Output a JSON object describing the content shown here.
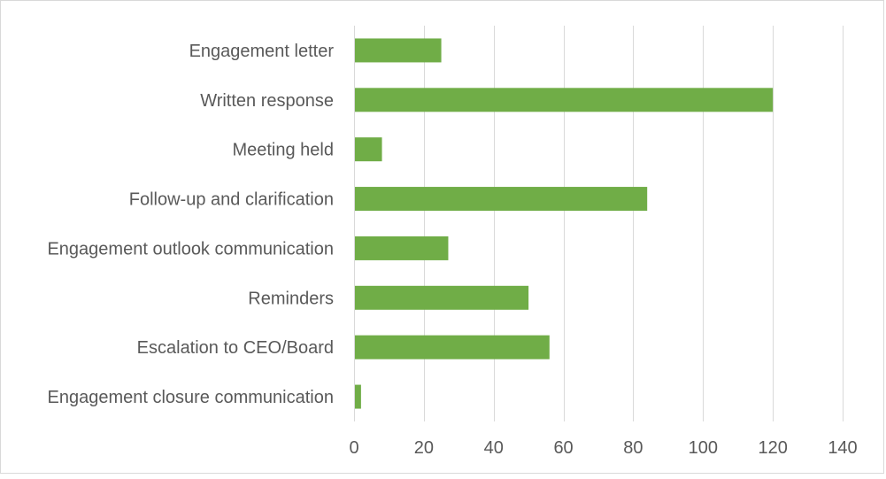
{
  "chart_data": {
    "type": "bar",
    "orientation": "horizontal",
    "categories": [
      "Engagement letter",
      "Written response",
      "Meeting held",
      "Follow-up and clarification",
      "Engagement outlook communication",
      "Reminders",
      "Escalation to CEO/Board",
      "Engagement closure communication"
    ],
    "values": [
      25,
      120,
      8,
      84,
      27,
      50,
      56,
      2
    ],
    "xlim": [
      0,
      140
    ],
    "xticks": [
      0,
      20,
      40,
      60,
      80,
      100,
      120,
      140
    ],
    "title": "",
    "xlabel": "",
    "ylabel": "",
    "grid": "vertical",
    "legend": "none",
    "bar_color": "#70ad47",
    "grid_color": "#d9d9d9",
    "text_color": "#595959"
  }
}
